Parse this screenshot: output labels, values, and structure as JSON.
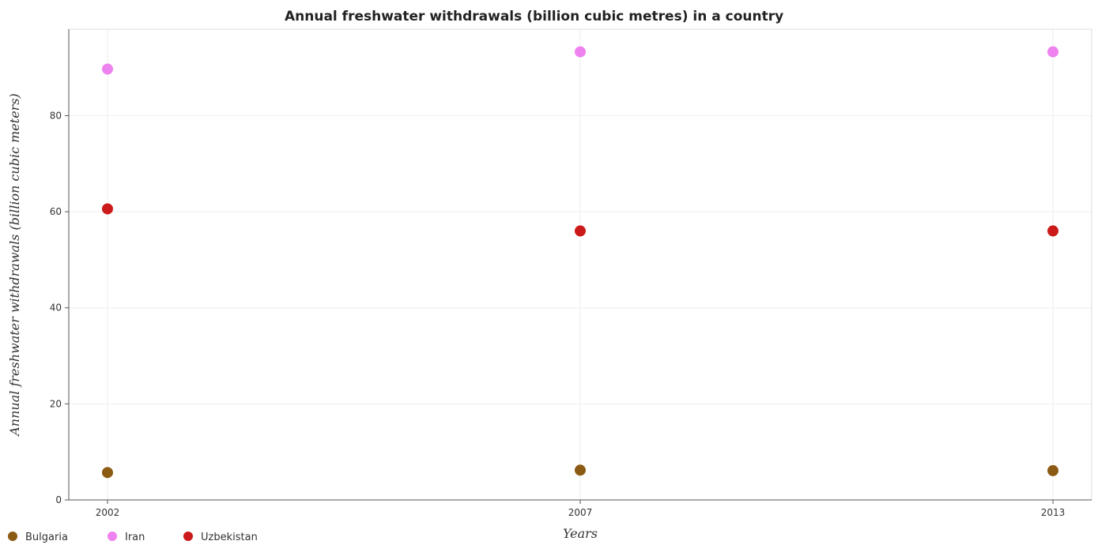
{
  "chart_data": {
    "type": "scatter",
    "title": "Annual freshwater withdrawals (billion cubic metres) in a country",
    "xlabel": "Years",
    "ylabel": "Annual freshwater withdrawals (billion cubic meters)",
    "categories": [
      "2002",
      "2007",
      "2013"
    ],
    "ylim": [
      0,
      98
    ],
    "yticks": [
      0,
      20,
      40,
      60,
      80
    ],
    "grid": true,
    "legend_position": "bottom-left",
    "series": [
      {
        "name": "Bulgaria",
        "color": "#8b5a13",
        "values": [
          5.7,
          6.2,
          6.1
        ]
      },
      {
        "name": "Iran",
        "color": "#ee82ee",
        "values": [
          89.7,
          93.3,
          93.3
        ]
      },
      {
        "name": "Uzbekistan",
        "color": "#cc1a1a",
        "values": [
          60.6,
          56.0,
          56.0
        ]
      }
    ]
  }
}
